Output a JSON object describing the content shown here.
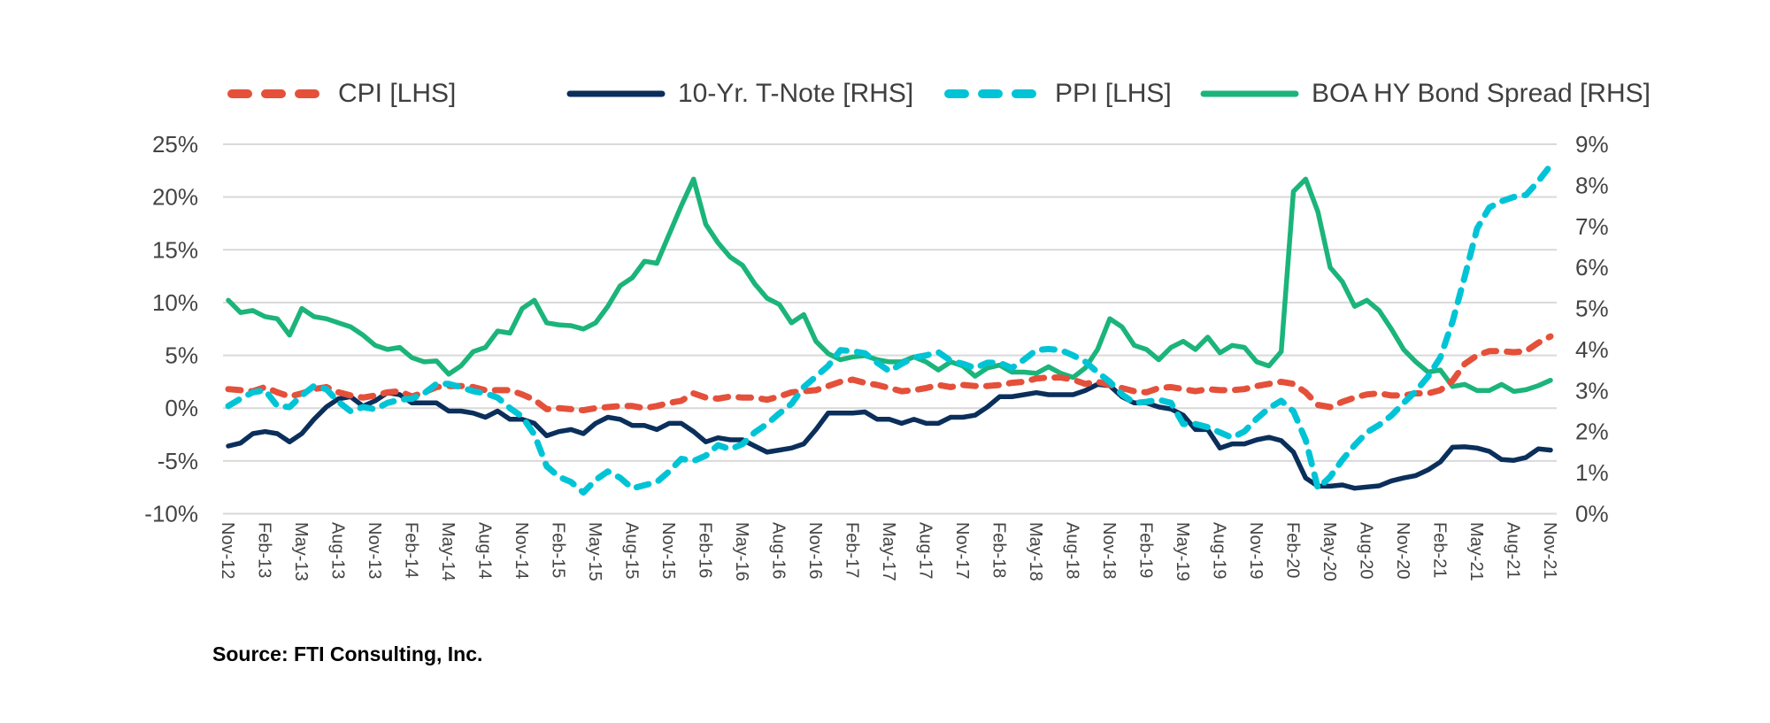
{
  "chart_data": {
    "type": "line",
    "title": "",
    "xlabel": "",
    "ylabel_left": "",
    "ylabel_right": "",
    "start_month": "Nov-12",
    "end_month": "Nov-21",
    "frequency": "monthly",
    "x_tick_labels": [
      "Nov-12",
      "Feb-13",
      "May-13",
      "Aug-13",
      "Nov-13",
      "Feb-14",
      "May-14",
      "Aug-14",
      "Nov-14",
      "Feb-15",
      "May-15",
      "Aug-15",
      "Nov-15",
      "Feb-16",
      "May-16",
      "Aug-16",
      "Nov-16",
      "Feb-17",
      "May-17",
      "Aug-17",
      "Nov-17",
      "Feb-18",
      "May-18",
      "Aug-18",
      "Nov-18",
      "Feb-19",
      "May-19",
      "Aug-19",
      "Nov-19",
      "Feb-20",
      "May-20",
      "Aug-20",
      "Nov-20",
      "Feb-21",
      "May-21",
      "Aug-21",
      "Nov-21"
    ],
    "y_left": {
      "range": [
        -10,
        25
      ],
      "step": 5,
      "tick_labels": [
        "25%",
        "20%",
        "15%",
        "10%",
        "5%",
        "0%",
        "-5%",
        "-10%"
      ]
    },
    "y_right": {
      "range": [
        0,
        9
      ],
      "step": 1,
      "tick_labels": [
        "9%",
        "8%",
        "7%",
        "6%",
        "5%",
        "4%",
        "3%",
        "2%",
        "1%",
        "0%"
      ]
    },
    "grid": true,
    "legend_position": "top",
    "series": [
      {
        "name": "CPI [LHS]",
        "axis": "left",
        "style": "dashed",
        "color": "#e4503a",
        "values": [
          1.8,
          1.7,
          1.6,
          2.0,
          1.5,
          1.1,
          1.4,
          1.8,
          2.0,
          1.5,
          1.2,
          1.0,
          1.2,
          1.5,
          1.6,
          1.1,
          1.5,
          2.0,
          2.1,
          2.1,
          2.0,
          1.7,
          1.7,
          1.7,
          1.3,
          0.8,
          -0.1,
          0.0,
          -0.1,
          -0.2,
          0.0,
          0.1,
          0.2,
          0.2,
          0.0,
          0.2,
          0.5,
          0.7,
          1.4,
          1.0,
          0.9,
          1.1,
          1.0,
          1.0,
          0.8,
          1.1,
          1.5,
          1.6,
          1.7,
          2.1,
          2.5,
          2.7,
          2.4,
          2.2,
          1.9,
          1.6,
          1.7,
          1.9,
          2.2,
          2.0,
          2.2,
          2.1,
          2.1,
          2.2,
          2.4,
          2.5,
          2.8,
          2.9,
          2.9,
          2.7,
          2.3,
          2.5,
          2.2,
          1.9,
          1.6,
          1.5,
          1.9,
          2.0,
          1.8,
          1.6,
          1.8,
          1.7,
          1.7,
          1.8,
          2.1,
          2.3,
          2.5,
          2.3,
          1.5,
          0.3,
          0.1,
          0.6,
          1.0,
          1.3,
          1.4,
          1.2,
          1.2,
          1.4,
          1.4,
          1.7,
          2.6,
          4.2,
          5.0,
          5.4,
          5.4,
          5.3,
          5.4,
          6.2,
          6.8
        ]
      },
      {
        "name": "10-Yr. T-Note [RHS]",
        "axis": "right",
        "style": "solid",
        "color": "#0b2f5b",
        "values": [
          1.65,
          1.72,
          1.95,
          2.0,
          1.95,
          1.75,
          1.95,
          2.3,
          2.6,
          2.8,
          2.85,
          2.62,
          2.75,
          2.95,
          2.9,
          2.7,
          2.7,
          2.7,
          2.5,
          2.5,
          2.45,
          2.35,
          2.5,
          2.3,
          2.3,
          2.2,
          1.9,
          2.0,
          2.05,
          1.95,
          2.2,
          2.35,
          2.3,
          2.15,
          2.15,
          2.05,
          2.2,
          2.2,
          2.0,
          1.75,
          1.85,
          1.8,
          1.8,
          1.65,
          1.5,
          1.55,
          1.6,
          1.7,
          2.05,
          2.45,
          2.45,
          2.45,
          2.48,
          2.3,
          2.3,
          2.2,
          2.3,
          2.2,
          2.2,
          2.35,
          2.35,
          2.4,
          2.6,
          2.85,
          2.85,
          2.9,
          2.95,
          2.9,
          2.9,
          2.9,
          3.0,
          3.15,
          3.12,
          2.85,
          2.7,
          2.7,
          2.6,
          2.55,
          2.4,
          2.05,
          2.05,
          1.6,
          1.7,
          1.7,
          1.8,
          1.86,
          1.78,
          1.5,
          0.87,
          0.67,
          0.67,
          0.7,
          0.62,
          0.65,
          0.68,
          0.8,
          0.87,
          0.93,
          1.07,
          1.26,
          1.62,
          1.63,
          1.6,
          1.52,
          1.32,
          1.3,
          1.37,
          1.58,
          1.55
        ]
      },
      {
        "name": "PPI [LHS]",
        "axis": "left",
        "style": "dashed",
        "color": "#00c4d6",
        "values": [
          0.2,
          0.9,
          1.5,
          1.7,
          0.2,
          0.1,
          1.2,
          2.1,
          1.8,
          0.6,
          -0.3,
          0.1,
          -0.1,
          0.5,
          0.8,
          0.9,
          1.4,
          2.3,
          2.3,
          2.0,
          1.6,
          1.4,
          1.0,
          0.0,
          -0.8,
          -2.5,
          -5.5,
          -6.5,
          -7.0,
          -8.0,
          -6.8,
          -6.0,
          -6.6,
          -7.6,
          -7.3,
          -7.0,
          -6.0,
          -4.8,
          -5.0,
          -4.5,
          -3.5,
          -3.9,
          -3.4,
          -2.3,
          -1.5,
          -0.5,
          0.4,
          2.0,
          3.0,
          4.0,
          5.5,
          5.4,
          5.2,
          4.3,
          3.5,
          4.2,
          4.8,
          5.0,
          5.3,
          4.5,
          4.2,
          3.8,
          4.3,
          4.3,
          3.8,
          4.6,
          5.5,
          5.6,
          5.5,
          5.0,
          4.4,
          3.4,
          2.5,
          1.3,
          0.5,
          0.6,
          0.8,
          0.5,
          -1.5,
          -1.5,
          -1.8,
          -2.3,
          -2.8,
          -2.2,
          -1.0,
          0.0,
          0.7,
          -0.3,
          -3.0,
          -7.6,
          -6.5,
          -4.9,
          -3.5,
          -2.3,
          -1.6,
          -0.7,
          0.5,
          1.6,
          3.0,
          4.8,
          8.2,
          12.5,
          17.0,
          19.0,
          19.6,
          20.0,
          20.2,
          21.5,
          23.0
        ]
      },
      {
        "name": "BOA HY Bond Spread [RHS]",
        "axis": "right",
        "style": "solid",
        "color": "#1bb47a",
        "values": [
          5.2,
          4.9,
          4.95,
          4.8,
          4.75,
          4.35,
          5.0,
          4.8,
          4.75,
          4.65,
          4.55,
          4.35,
          4.1,
          4.0,
          4.05,
          3.8,
          3.7,
          3.72,
          3.4,
          3.6,
          3.95,
          4.05,
          4.45,
          4.4,
          5.0,
          5.2,
          4.65,
          4.6,
          4.58,
          4.5,
          4.65,
          5.05,
          5.55,
          5.75,
          6.15,
          6.1,
          6.8,
          7.5,
          8.15,
          7.05,
          6.6,
          6.25,
          6.05,
          5.6,
          5.25,
          5.1,
          4.65,
          4.85,
          4.2,
          3.9,
          3.75,
          3.82,
          3.85,
          3.75,
          3.7,
          3.7,
          3.82,
          3.7,
          3.5,
          3.7,
          3.6,
          3.35,
          3.55,
          3.62,
          3.45,
          3.45,
          3.42,
          3.58,
          3.42,
          3.32,
          3.55,
          4.0,
          4.75,
          4.55,
          4.1,
          4.0,
          3.75,
          4.05,
          4.2,
          4.0,
          4.3,
          3.92,
          4.1,
          4.05,
          3.7,
          3.6,
          3.95,
          7.85,
          8.15,
          7.35,
          6.0,
          5.65,
          5.05,
          5.2,
          4.95,
          4.5,
          4.0,
          3.7,
          3.45,
          3.5,
          3.1,
          3.15,
          3.0,
          3.0,
          3.15,
          2.98,
          3.02,
          3.12,
          3.25
        ]
      }
    ]
  },
  "source": "Source: FTI Consulting, Inc."
}
